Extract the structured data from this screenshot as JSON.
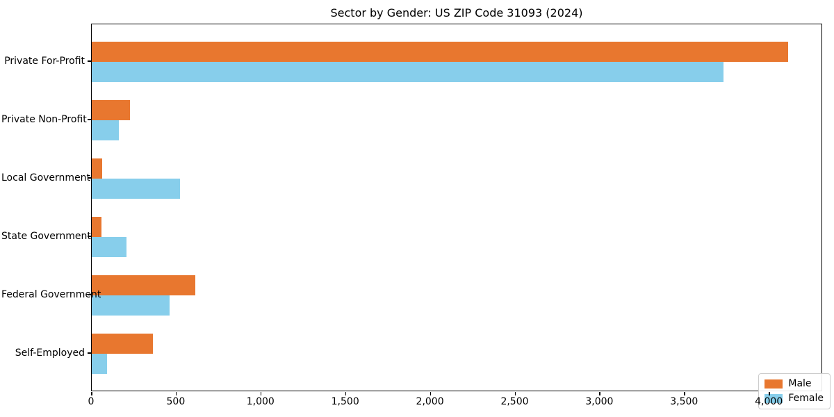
{
  "chart_data": {
    "type": "bar",
    "orientation": "horizontal",
    "title": "Sector by Gender: US ZIP Code 31093 (2024)",
    "categories": [
      "Private For-Profit",
      "Private Non-Profit",
      "Local Government",
      "State Government",
      "Federal Government",
      "Self-Employed"
    ],
    "series": [
      {
        "name": "Male",
        "color": "#e8772f",
        "values": [
          4110,
          225,
          60,
          57,
          610,
          360
        ]
      },
      {
        "name": "Female",
        "color": "#87ceeb",
        "values": [
          3730,
          160,
          520,
          205,
          460,
          90
        ]
      }
    ],
    "xlim": [
      0,
      4315
    ],
    "xticks": [
      0,
      500,
      1000,
      1500,
      2000,
      2500,
      3000,
      3500,
      4000
    ],
    "xtick_labels": [
      "0",
      "500",
      "1,000",
      "1,500",
      "2,000",
      "2,500",
      "3,000",
      "3,500",
      "4,000"
    ],
    "xlabel": "",
    "ylabel": "",
    "grid": false,
    "legend_position": "lower right",
    "legend_entries": [
      "Male",
      "Female"
    ]
  }
}
